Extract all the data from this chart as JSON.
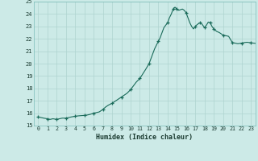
{
  "title": "",
  "xlabel": "Humidex (Indice chaleur)",
  "background_color": "#cceae7",
  "grid_color": "#aed4d0",
  "line_color": "#1a6b5a",
  "marker_color": "#1a6b5a",
  "xlim": [
    -0.5,
    23.5
  ],
  "ylim": [
    15,
    25
  ],
  "yticks": [
    15,
    16,
    17,
    18,
    19,
    20,
    21,
    22,
    23,
    24,
    25
  ],
  "xticks": [
    0,
    1,
    2,
    3,
    4,
    5,
    6,
    7,
    8,
    9,
    10,
    11,
    12,
    13,
    14,
    15,
    16,
    17,
    18,
    19,
    20,
    21,
    22,
    23
  ],
  "x": [
    0,
    0.3,
    0.6,
    1.0,
    1.3,
    1.6,
    2.0,
    2.3,
    2.6,
    3.0,
    3.3,
    3.6,
    4.0,
    4.3,
    4.6,
    5.0,
    5.3,
    5.6,
    6.0,
    6.3,
    6.6,
    7.0,
    7.3,
    7.6,
    8.0,
    8.3,
    8.6,
    9.0,
    9.3,
    9.6,
    10.0,
    10.3,
    10.6,
    11.0,
    11.3,
    11.6,
    12.0,
    12.3,
    12.6,
    13.0,
    13.2,
    13.4,
    13.6,
    13.8,
    14.0,
    14.2,
    14.4,
    14.6,
    14.8,
    15.0,
    15.2,
    15.4,
    15.6,
    15.8,
    16.0,
    16.2,
    16.4,
    16.6,
    16.8,
    17.0,
    17.2,
    17.4,
    17.6,
    17.8,
    18.0,
    18.2,
    18.4,
    18.6,
    18.8,
    19.0,
    19.3,
    19.6,
    20.0,
    20.3,
    20.6,
    21.0,
    21.3,
    21.6,
    22.0,
    22.3,
    22.6,
    23.0,
    23.3,
    23.6
  ],
  "y": [
    15.7,
    15.65,
    15.6,
    15.55,
    15.5,
    15.55,
    15.5,
    15.55,
    15.6,
    15.6,
    15.65,
    15.7,
    15.75,
    15.78,
    15.8,
    15.82,
    15.85,
    15.9,
    16.0,
    16.05,
    16.1,
    16.3,
    16.5,
    16.65,
    16.8,
    16.95,
    17.1,
    17.3,
    17.45,
    17.6,
    17.9,
    18.2,
    18.5,
    18.8,
    19.15,
    19.5,
    20.0,
    20.6,
    21.2,
    21.8,
    22.1,
    22.5,
    22.9,
    23.1,
    23.3,
    23.7,
    24.0,
    24.4,
    24.55,
    24.4,
    24.3,
    24.35,
    24.4,
    24.3,
    24.1,
    23.7,
    23.3,
    23.0,
    22.8,
    23.0,
    23.15,
    23.25,
    23.3,
    23.1,
    22.9,
    23.1,
    23.35,
    23.3,
    23.0,
    22.8,
    22.6,
    22.5,
    22.3,
    22.25,
    22.2,
    21.7,
    21.65,
    21.6,
    21.65,
    21.7,
    21.72,
    21.68,
    21.65,
    21.62
  ],
  "marker_x": [
    0,
    1,
    2,
    3,
    4,
    5,
    6,
    7,
    8,
    9,
    10,
    11,
    12,
    13,
    14,
    14.6,
    15,
    16,
    17,
    17.5,
    18,
    18.6,
    19,
    20,
    21,
    22,
    23
  ],
  "marker_y": [
    15.7,
    15.55,
    15.5,
    15.6,
    15.75,
    15.82,
    16.0,
    16.3,
    16.8,
    17.3,
    17.9,
    18.8,
    20.0,
    21.8,
    23.3,
    24.4,
    24.4,
    24.1,
    23.0,
    23.3,
    22.9,
    23.3,
    22.8,
    22.3,
    21.7,
    21.65,
    21.68
  ]
}
